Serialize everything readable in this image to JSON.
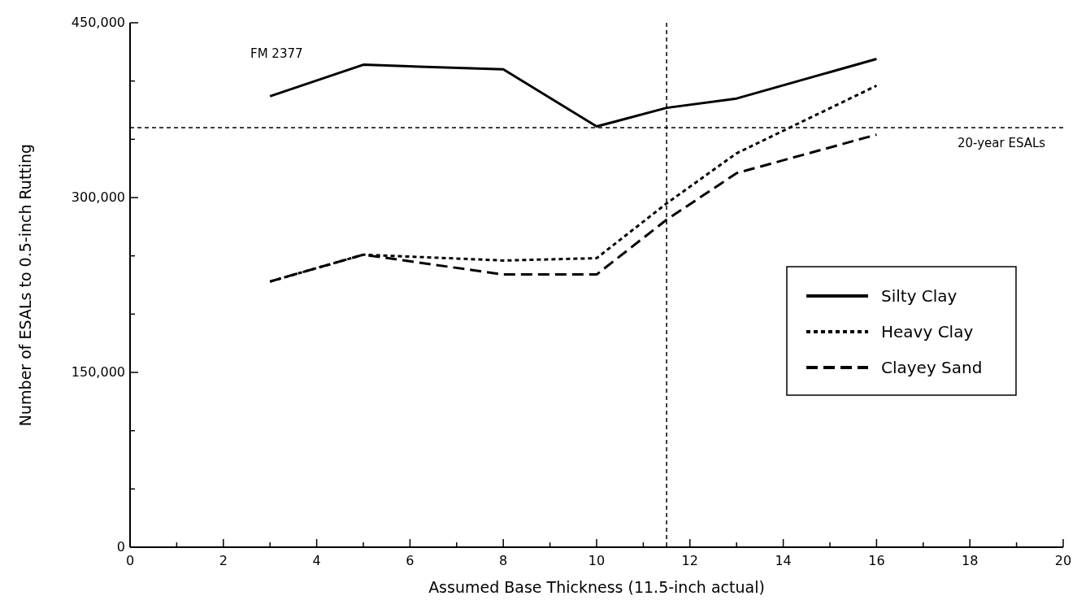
{
  "chart_data": {
    "type": "line",
    "xlabel": "Assumed Base Thickness (11.5-inch actual)",
    "ylabel": "Number of ESALs to 0.5-inch Rutting",
    "x": [
      3,
      5,
      8,
      10,
      11.5,
      13,
      16
    ],
    "series": [
      {
        "name": "Silty Clay",
        "color": "#000000",
        "line_style": "solid",
        "values": [
          387000,
          414000,
          410000,
          361000,
          377000,
          385000,
          419000
        ]
      },
      {
        "name": "Heavy Clay",
        "color": "#000000",
        "line_style": "dotted",
        "values": [
          228000,
          251000,
          246000,
          248000,
          295000,
          338000,
          396000
        ]
      },
      {
        "name": "Clayey Sand",
        "color": "#000000",
        "line_style": "dashed",
        "values": [
          228000,
          251000,
          234000,
          234000,
          281000,
          321000,
          354000
        ]
      }
    ],
    "xlim": [
      0,
      20
    ],
    "xticks": [
      0,
      {
        "value": 1,
        "label": null
      },
      2,
      {
        "value": 3,
        "label": null
      },
      4,
      {
        "value": 5,
        "label": null
      },
      6,
      {
        "value": 7,
        "label": null
      },
      8,
      {
        "value": 9,
        "label": null
      },
      10,
      {
        "value": 11,
        "label": null
      },
      12,
      {
        "value": 13,
        "label": null
      },
      14,
      {
        "value": 15,
        "label": null
      },
      16,
      {
        "value": 17,
        "label": null
      },
      18,
      {
        "value": 19,
        "label": null
      },
      20
    ],
    "ylim": [
      0,
      450000
    ],
    "yticks": [
      {
        "value": 0,
        "label": "0"
      },
      {
        "value": 50000,
        "label": null
      },
      {
        "value": 100000,
        "label": null
      },
      {
        "value": 150000,
        "label": "150,000"
      },
      {
        "value": 200000,
        "label": null
      },
      {
        "value": 250000,
        "label": null
      },
      {
        "value": 300000,
        "label": "300,000"
      },
      {
        "value": 350000,
        "label": null
      },
      {
        "value": 400000,
        "label": null
      },
      {
        "value": 450000,
        "label": "450,000"
      }
    ],
    "ref_lines": [
      {
        "axis": "y",
        "value": 360000,
        "label": "20-year ESALs",
        "color": "#000000",
        "line_style": "dotted"
      },
      {
        "axis": "x",
        "value": 11.5,
        "color": "#000000",
        "line_style": "dotted"
      }
    ],
    "annotations": [
      "FM 2377"
    ],
    "legend": "right",
    "grid": false,
    "marker": "none"
  }
}
